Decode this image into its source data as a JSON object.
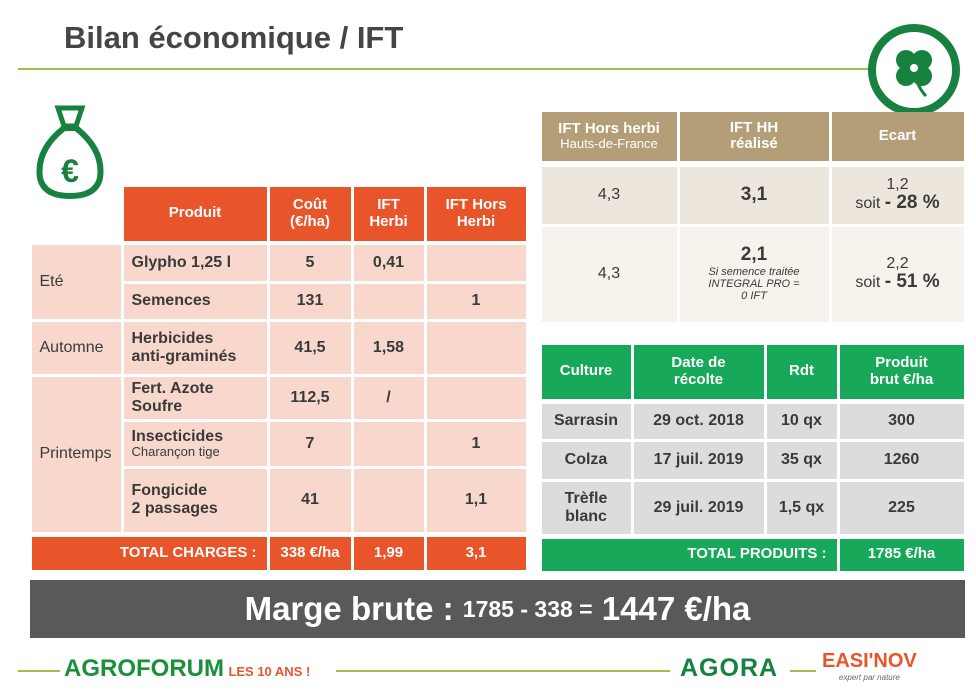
{
  "header": {
    "title": "Bilan économique / IFT"
  },
  "icons": {
    "money": "€"
  },
  "charges_table": {
    "columns": [
      "Produit",
      "Coût\n(€/ha)",
      "IFT\nHerbi",
      "IFT Hors\nHerbi"
    ],
    "groups": [
      {
        "season": "Eté",
        "items": [
          {
            "product": "Glypho 1,25 l",
            "cost": "5",
            "ift_herbi": "0,41"
          },
          {
            "product": "Semences",
            "cost": "131",
            "ift_hors_herbi": "1"
          }
        ]
      },
      {
        "season": "Automne",
        "items": [
          {
            "product": "Herbicides\nanti-graminés",
            "cost": "41,5",
            "ift_herbi": "1,58"
          }
        ]
      },
      {
        "season": "Printemps",
        "items": [
          {
            "product": "Fert. Azote\nSoufre",
            "cost": "112,5",
            "ift_herbi": "/"
          },
          {
            "product": "Insecticides",
            "note": "Charançon tige",
            "cost": "7",
            "ift_hors_herbi": "1"
          },
          {
            "product": "Fongicide\n2 passages",
            "cost": "41",
            "ift_hors_herbi": "1,1"
          }
        ]
      }
    ],
    "total": {
      "label": "TOTAL CHARGES :",
      "cost": "338 €/ha",
      "ift_herbi": "1,99",
      "ift_hors_herbi": "3,1"
    }
  },
  "ift_table": {
    "columns": [
      {
        "title": "IFT Hors herbi",
        "subtitle": "Hauts-de-France"
      },
      {
        "title": "IFT HH\nréalisé"
      },
      {
        "title": "Ecart"
      }
    ],
    "rows": [
      {
        "reference": "4,3",
        "realise": "3,1",
        "ecart": "1,2",
        "ecart_prefix": "soit",
        "ecart_pct": "- 28 %"
      },
      {
        "reference": "4,3",
        "realise": "2,1",
        "note": "Si semence traitée\nINTEGRAL PRO =\n0 IFT",
        "ecart": "2,2",
        "ecart_prefix": "soit",
        "ecart_pct": "- 51 %"
      }
    ]
  },
  "culture_table": {
    "columns": [
      "Culture",
      "Date de\nrécolte",
      "Rdt",
      "Produit\nbrut €/ha"
    ],
    "rows": [
      [
        "Sarrasin",
        "29 oct. 2018",
        "10 qx",
        "300"
      ],
      [
        "Colza",
        "17 juil. 2019",
        "35 qx",
        "1260"
      ],
      [
        "Trèfle\nblanc",
        "29 juil. 2019",
        "1,5 qx",
        "225"
      ]
    ],
    "total": {
      "label": "TOTAL PRODUITS :",
      "value": "1785 €/ha"
    }
  },
  "margin": {
    "label": "Marge brute :",
    "formula": "1785 - 338 =",
    "result": "1447 €/ha"
  },
  "footer": {
    "agroforum": "AGROFORUM",
    "anniversary": "LES 10 ANS !",
    "agora": "AGORA",
    "easinov": "EASI'NOV",
    "easinov_tagline": "expert par nature"
  }
}
